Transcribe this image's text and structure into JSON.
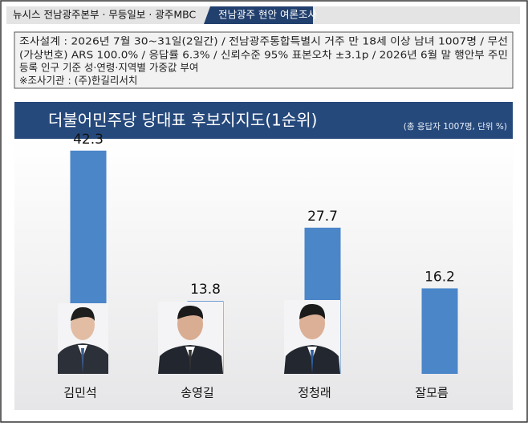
{
  "header": {
    "source": "뉴시스  전남광주본부 · 무등일보 · 광주MBC",
    "tag": "전남광주  현안  여론조사"
  },
  "notes": [
    "조사설계 : 2026년 7월 30~31일(2일간) / 전남광주통합특별시 거주 만 18세 이상 남녀 1007명 / 무선",
    "(가상번호) ARS 100.0% / 응답률 6.3% / 신뢰수준 95% 표본오차 ±3.1p / 2026년 6월 말 행안부 주민",
    "등록 인구 기준 성·연령·지역별 가중값 부여",
    "※조사기관 : (주)한길리서치"
  ],
  "chart_data": {
    "type": "bar",
    "title": "더불어민주당 당대표 후보지지도(1순위)",
    "subtitle": "(총 응답자 1007명, 단위 %)",
    "categories": [
      "김민석",
      "송영길",
      "정청래",
      "잘모름"
    ],
    "values": [
      42.3,
      13.8,
      27.7,
      16.2
    ],
    "color": "#4a86c8",
    "ylim": [
      0,
      45
    ]
  }
}
